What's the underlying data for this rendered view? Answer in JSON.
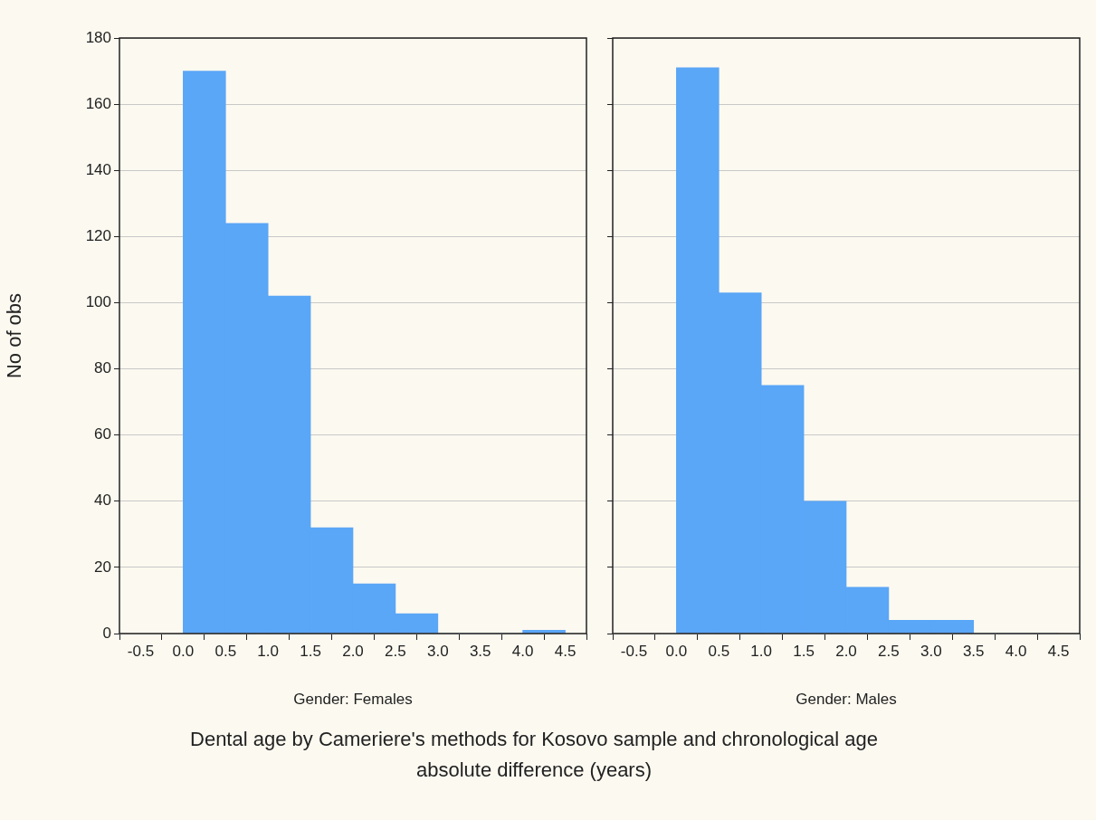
{
  "chart_data": [
    {
      "type": "histogram",
      "xlabel": "Gender: Females",
      "ylabel": "No of obs",
      "bins": [
        0,
        0.5,
        1,
        1.5,
        2,
        2.5,
        3,
        3.5,
        4,
        4.5
      ],
      "values": [
        170,
        124,
        102,
        32,
        15,
        6,
        0,
        0,
        1
      ],
      "color": "#5aa6f7",
      "xlim": [
        -0.75,
        4.75
      ],
      "xticks": [
        {
          "value": -0.5,
          "label": "-0.5"
        },
        {
          "value": 0,
          "label": "0.0"
        },
        {
          "value": 0.5,
          "label": "0.5"
        },
        {
          "value": 1,
          "label": "1.0"
        },
        {
          "value": 1.5,
          "label": "1.5"
        },
        {
          "value": 2,
          "label": "2.0"
        },
        {
          "value": 2.5,
          "label": "2.5"
        },
        {
          "value": 3,
          "label": "3.0"
        },
        {
          "value": 3.5,
          "label": "3.5"
        },
        {
          "value": 4,
          "label": "4.0"
        },
        {
          "value": 4.5,
          "label": "4.5"
        }
      ],
      "ylim": [
        0,
        180
      ],
      "yticks": [
        0,
        20,
        40,
        60,
        80,
        100,
        120,
        140,
        160,
        180
      ],
      "grid": "y",
      "legend": false,
      "annotations": [
        "Dental age by Cameriere's methods for Kosovo sample and chronological age absolute difference (years)"
      ]
    },
    {
      "type": "histogram",
      "xlabel": "Gender: Males",
      "bins": [
        0,
        0.5,
        1,
        1.5,
        2,
        2.5,
        3,
        3.5,
        4,
        4.5
      ],
      "values": [
        171,
        103,
        75,
        40,
        14,
        4,
        4,
        0,
        0
      ],
      "color": "#5aa6f7",
      "xlim": [
        -0.75,
        4.75
      ],
      "xticks": [
        {
          "value": -0.5,
          "label": "-0.5"
        },
        {
          "value": 0,
          "label": "0.0"
        },
        {
          "value": 0.5,
          "label": "0.5"
        },
        {
          "value": 1,
          "label": "1.0"
        },
        {
          "value": 1.5,
          "label": "1.5"
        },
        {
          "value": 2,
          "label": "2.0"
        },
        {
          "value": 2.5,
          "label": "2.5"
        },
        {
          "value": 3,
          "label": "3.0"
        },
        {
          "value": 3.5,
          "label": "3.5"
        },
        {
          "value": 4,
          "label": "4.0"
        },
        {
          "value": 4.5,
          "label": "4.5"
        }
      ],
      "ylim": [
        0,
        180
      ],
      "yticks": [
        0,
        20,
        40,
        60,
        80,
        100,
        120,
        140,
        160,
        180
      ],
      "grid": "y",
      "legend": false,
      "tick_labels": "x"
    }
  ]
}
